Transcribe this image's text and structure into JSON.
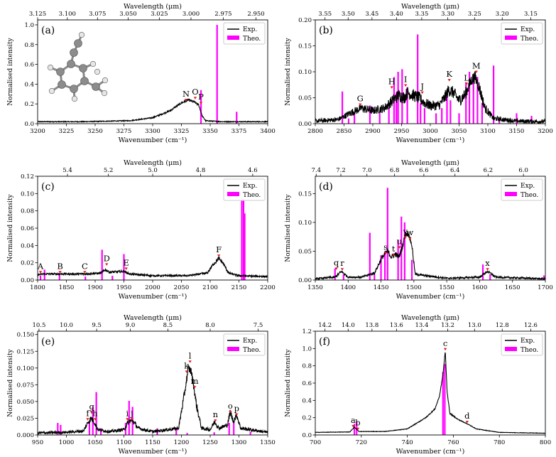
{
  "figure": {
    "legend_exp": "Exp.",
    "legend_theo": "Theo.",
    "colors": {
      "exp": "#000000",
      "theo": "#ff00ff",
      "marker": "#e02020"
    }
  },
  "chart_data": [
    {
      "panel": "(a)",
      "type": "line+bar",
      "xlabel": "Wavenumber (cm⁻¹)",
      "ylabel": "Normalised intensity",
      "top_label": "Wavelength (μm)",
      "xlim": [
        3200,
        3400
      ],
      "ylim": [
        0,
        1.05
      ],
      "xticks": [
        3200,
        3225,
        3250,
        3275,
        3300,
        3325,
        3350,
        3375,
        3400
      ],
      "yticks": [
        0.0,
        0.2,
        0.4,
        0.6,
        0.8,
        1.0
      ],
      "top_ticks": [
        3.125,
        3.1,
        3.075,
        3.05,
        3.025,
        3.0,
        2.975,
        2.95
      ],
      "top_tick_labels": [
        "3.125",
        "3.100",
        "3.075",
        "3.050",
        "3.025",
        "3.000",
        "2.975",
        "2.950"
      ],
      "exp": [
        [
          3200,
          0.02
        ],
        [
          3240,
          0.02
        ],
        [
          3280,
          0.03
        ],
        [
          3300,
          0.06
        ],
        [
          3315,
          0.13
        ],
        [
          3325,
          0.21
        ],
        [
          3331,
          0.24
        ],
        [
          3336,
          0.22
        ],
        [
          3340,
          0.19
        ],
        [
          3343,
          0.08
        ],
        [
          3346,
          0.03
        ],
        [
          3360,
          0.02
        ],
        [
          3400,
          0.02
        ]
      ],
      "exp_noise": 0.02,
      "theo": [
        [
          3342,
          0.34
        ],
        [
          3356,
          1.0
        ],
        [
          3373,
          0.12
        ]
      ],
      "peaks": [
        {
          "label": "N",
          "x": 3329,
          "y": 0.23
        },
        {
          "label": "O",
          "x": 3337,
          "y": 0.25
        },
        {
          "label": "P",
          "x": 3342,
          "y": 0.2
        }
      ],
      "has_molecule": true
    },
    {
      "panel": "(b)",
      "type": "line+bar",
      "xlabel": "Wavenumber (cm⁻¹)",
      "ylabel": "Normalised intensity",
      "top_label": "Wavelength (μm)",
      "xlim": [
        2800,
        3200
      ],
      "ylim": [
        0,
        0.2
      ],
      "xticks": [
        2800,
        2850,
        2900,
        2950,
        3000,
        3050,
        3100,
        3150,
        3200
      ],
      "yticks": [
        0.0,
        0.05,
        0.1,
        0.15,
        0.2
      ],
      "top_ticks": [
        3.55,
        3.5,
        3.45,
        3.4,
        3.35,
        3.3,
        3.25,
        3.2,
        3.15
      ],
      "top_tick_labels": [
        "3.55",
        "3.50",
        "3.45",
        "3.40",
        "3.35",
        "3.30",
        "3.25",
        "3.20",
        "3.15"
      ],
      "exp": [
        [
          2800,
          0.005
        ],
        [
          2840,
          0.008
        ],
        [
          2860,
          0.02
        ],
        [
          2880,
          0.03
        ],
        [
          2900,
          0.025
        ],
        [
          2920,
          0.03
        ],
        [
          2935,
          0.045
        ],
        [
          2945,
          0.055
        ],
        [
          2955,
          0.05
        ],
        [
          2960,
          0.06
        ],
        [
          2970,
          0.055
        ],
        [
          2980,
          0.05
        ],
        [
          2990,
          0.04
        ],
        [
          3000,
          0.035
        ],
        [
          3015,
          0.035
        ],
        [
          3025,
          0.05
        ],
        [
          3032,
          0.065
        ],
        [
          3040,
          0.06
        ],
        [
          3050,
          0.045
        ],
        [
          3060,
          0.055
        ],
        [
          3072,
          0.085
        ],
        [
          3078,
          0.09
        ],
        [
          3085,
          0.07
        ],
        [
          3095,
          0.03
        ],
        [
          3110,
          0.01
        ],
        [
          3150,
          0.005
        ],
        [
          3200,
          0.004
        ]
      ],
      "exp_noise": 0.018,
      "theo": [
        [
          2847,
          0.062
        ],
        [
          2858,
          0.01
        ],
        [
          2868,
          0.02
        ],
        [
          2895,
          0.035
        ],
        [
          2912,
          0.02
        ],
        [
          2928,
          0.03
        ],
        [
          2937,
          0.09
        ],
        [
          2941,
          0.06
        ],
        [
          2944,
          0.1
        ],
        [
          2951,
          0.105
        ],
        [
          2960,
          0.07
        ],
        [
          2978,
          0.172
        ],
        [
          2983,
          0.04
        ],
        [
          2990,
          0.03
        ],
        [
          3010,
          0.02
        ],
        [
          3020,
          0.03
        ],
        [
          3029,
          0.06
        ],
        [
          3035,
          0.045
        ],
        [
          3050,
          0.02
        ],
        [
          3062,
          0.08
        ],
        [
          3068,
          0.1
        ],
        [
          3075,
          0.095
        ],
        [
          3082,
          0.09
        ],
        [
          3090,
          0.04
        ],
        [
          3110,
          0.112
        ],
        [
          3120,
          0.01
        ],
        [
          3150,
          0.02
        ],
        [
          3176,
          0.015
        ]
      ],
      "peaks": [
        {
          "label": "G",
          "x": 2878,
          "y": 0.035
        },
        {
          "label": "H",
          "x": 2933,
          "y": 0.068
        },
        {
          "label": "I",
          "x": 2957,
          "y": 0.072
        },
        {
          "label": "J",
          "x": 2986,
          "y": 0.058
        },
        {
          "label": "K",
          "x": 3033,
          "y": 0.082
        },
        {
          "label": "L",
          "x": 3063,
          "y": 0.075
        },
        {
          "label": "M",
          "x": 3080,
          "y": 0.098
        }
      ]
    },
    {
      "panel": "(c)",
      "type": "line+bar",
      "xlabel": "Wavenumber (cm⁻¹)",
      "ylabel": "Normalised intensity",
      "top_label": "Wavelength (μm)",
      "xlim": [
        1800,
        2200
      ],
      "ylim": [
        0,
        0.12
      ],
      "xticks": [
        1800,
        1850,
        1900,
        1950,
        2000,
        2050,
        2100,
        2150,
        2200
      ],
      "yticks": [
        0.0,
        0.02,
        0.04,
        0.06,
        0.08,
        0.1,
        0.12
      ],
      "top_ticks": [
        5.4,
        5.2,
        5.0,
        4.8,
        4.6
      ],
      "top_tick_labels": [
        "5.4",
        "5.2",
        "5.0",
        "4.8",
        "4.6"
      ],
      "exp": [
        [
          1800,
          0.006
        ],
        [
          1810,
          0.007
        ],
        [
          1840,
          0.007
        ],
        [
          1880,
          0.007
        ],
        [
          1910,
          0.008
        ],
        [
          1918,
          0.012
        ],
        [
          1925,
          0.009
        ],
        [
          1950,
          0.01
        ],
        [
          1960,
          0.007
        ],
        [
          2000,
          0.005
        ],
        [
          2060,
          0.005
        ],
        [
          2095,
          0.008
        ],
        [
          2105,
          0.018
        ],
        [
          2115,
          0.025
        ],
        [
          2122,
          0.02
        ],
        [
          2132,
          0.008
        ],
        [
          2150,
          0.005
        ],
        [
          2200,
          0.004
        ]
      ],
      "exp_noise": 0.004,
      "theo": [
        [
          1805,
          0.005
        ],
        [
          1812,
          0.012
        ],
        [
          1838,
          0.008
        ],
        [
          1883,
          0.004
        ],
        [
          1912,
          0.035
        ],
        [
          1930,
          0.005
        ],
        [
          1950,
          0.03
        ],
        [
          2155,
          0.1
        ],
        [
          2158,
          0.11
        ],
        [
          2160,
          0.077
        ]
      ],
      "peaks": [
        {
          "label": "A",
          "x": 1805,
          "y": 0.008
        },
        {
          "label": "B",
          "x": 1839,
          "y": 0.008
        },
        {
          "label": "C",
          "x": 1882,
          "y": 0.008
        },
        {
          "label": "D",
          "x": 1920,
          "y": 0.017
        },
        {
          "label": "E",
          "x": 1954,
          "y": 0.012
        },
        {
          "label": "F",
          "x": 2115,
          "y": 0.027
        }
      ]
    },
    {
      "panel": "(d)",
      "type": "line+bar",
      "xlabel": "Wavenumber (cm⁻¹)",
      "ylabel": "Normalised intensity",
      "top_label": "Wavelength (μm)",
      "xlim": [
        1350,
        1700
      ],
      "ylim": [
        0,
        0.18
      ],
      "xticks": [
        1350,
        1400,
        1450,
        1500,
        1550,
        1600,
        1650,
        1700
      ],
      "yticks": [
        0.0,
        0.05,
        0.1,
        0.15
      ],
      "top_ticks": [
        7.4,
        7.2,
        7.0,
        6.8,
        6.6,
        6.4,
        6.2,
        6.0
      ],
      "top_tick_labels": [
        "7.4",
        "7.2",
        "7.0",
        "6.8",
        "6.6",
        "6.4",
        "6.2",
        "6.0"
      ],
      "exp": [
        [
          1350,
          0.002
        ],
        [
          1380,
          0.005
        ],
        [
          1390,
          0.015
        ],
        [
          1400,
          0.005
        ],
        [
          1420,
          0.005
        ],
        [
          1440,
          0.012
        ],
        [
          1452,
          0.04
        ],
        [
          1460,
          0.05
        ],
        [
          1466,
          0.04
        ],
        [
          1472,
          0.045
        ],
        [
          1477,
          0.04
        ],
        [
          1482,
          0.055
        ],
        [
          1487,
          0.08
        ],
        [
          1492,
          0.08
        ],
        [
          1497,
          0.06
        ],
        [
          1502,
          0.01
        ],
        [
          1550,
          0.003
        ],
        [
          1600,
          0.005
        ],
        [
          1612,
          0.015
        ],
        [
          1625,
          0.005
        ],
        [
          1700,
          0.002
        ]
      ],
      "exp_noise": 0.007,
      "theo": [
        [
          1380,
          0.02
        ],
        [
          1393,
          0.01
        ],
        [
          1433,
          0.082
        ],
        [
          1440,
          0.01
        ],
        [
          1450,
          0.043
        ],
        [
          1456,
          0.05
        ],
        [
          1460,
          0.16
        ],
        [
          1476,
          0.07
        ],
        [
          1481,
          0.11
        ],
        [
          1486,
          0.1
        ],
        [
          1497,
          0.035
        ],
        [
          1605,
          0.027
        ],
        [
          1616,
          0.01
        ],
        [
          1698,
          0.008
        ]
      ],
      "peaks": [
        {
          "label": "q",
          "x": 1382,
          "y": 0.018
        },
        {
          "label": "r",
          "x": 1391,
          "y": 0.017
        },
        {
          "label": "s",
          "x": 1457,
          "y": 0.045
        },
        {
          "label": "t",
          "x": 1469,
          "y": 0.042
        },
        {
          "label": "u",
          "x": 1478,
          "y": 0.055
        },
        {
          "label": "v",
          "x": 1487,
          "y": 0.072
        },
        {
          "label": "w",
          "x": 1494,
          "y": 0.07
        },
        {
          "label": "x",
          "x": 1612,
          "y": 0.017
        }
      ]
    },
    {
      "panel": "(e)",
      "type": "line+bar",
      "xlabel": "Wavenumber (cm⁻¹)",
      "ylabel": "Normalised intensity",
      "top_label": "Wavelength (μm)",
      "xlim": [
        950,
        1350
      ],
      "ylim": [
        0,
        0.155
      ],
      "xticks": [
        950,
        1000,
        1050,
        1100,
        1150,
        1200,
        1250,
        1300,
        1350
      ],
      "yticks": [
        0.0,
        0.025,
        0.05,
        0.075,
        0.1,
        0.125,
        0.15
      ],
      "top_ticks": [
        10.5,
        10.0,
        9.5,
        9.0,
        8.5,
        8.0,
        7.5
      ],
      "top_tick_labels": [
        "10.5",
        "10.0",
        "9.5",
        "9.0",
        "8.5",
        "8.0",
        "7.5"
      ],
      "exp": [
        [
          950,
          0.003
        ],
        [
          1000,
          0.004
        ],
        [
          1030,
          0.006
        ],
        [
          1037,
          0.018
        ],
        [
          1043,
          0.025
        ],
        [
          1048,
          0.02
        ],
        [
          1055,
          0.008
        ],
        [
          1075,
          0.005
        ],
        [
          1100,
          0.008
        ],
        [
          1108,
          0.02
        ],
        [
          1115,
          0.022
        ],
        [
          1125,
          0.01
        ],
        [
          1150,
          0.005
        ],
        [
          1195,
          0.01
        ],
        [
          1205,
          0.06
        ],
        [
          1212,
          0.1
        ],
        [
          1217,
          0.095
        ],
        [
          1222,
          0.07
        ],
        [
          1226,
          0.045
        ],
        [
          1235,
          0.01
        ],
        [
          1250,
          0.008
        ],
        [
          1258,
          0.02
        ],
        [
          1265,
          0.01
        ],
        [
          1280,
          0.015
        ],
        [
          1285,
          0.035
        ],
        [
          1290,
          0.02
        ],
        [
          1296,
          0.03
        ],
        [
          1303,
          0.01
        ],
        [
          1350,
          0.004
        ]
      ],
      "exp_noise": 0.009,
      "theo": [
        [
          985,
          0.018
        ],
        [
          990,
          0.015
        ],
        [
          1040,
          0.02
        ],
        [
          1046,
          0.042
        ],
        [
          1052,
          0.064
        ],
        [
          1060,
          0.01
        ],
        [
          1103,
          0.018
        ],
        [
          1109,
          0.051
        ],
        [
          1115,
          0.042
        ],
        [
          1158,
          0.01
        ],
        [
          1191,
          0.008
        ],
        [
          1210,
          0.003
        ],
        [
          1257,
          0.004
        ],
        [
          1283,
          0.018
        ],
        [
          1291,
          0.02
        ],
        [
          1320,
          0.005
        ]
      ],
      "peaks": [
        {
          "label": "f",
          "x": 1037,
          "y": 0.022
        },
        {
          "label": "g",
          "x": 1044,
          "y": 0.032
        },
        {
          "label": "h",
          "x": 1050,
          "y": 0.022
        },
        {
          "label": "i",
          "x": 1106,
          "y": 0.022
        },
        {
          "label": "j",
          "x": 1114,
          "y": 0.022
        },
        {
          "label": "k",
          "x": 1209,
          "y": 0.093
        },
        {
          "label": "l",
          "x": 1215,
          "y": 0.108
        },
        {
          "label": "m",
          "x": 1223,
          "y": 0.07
        },
        {
          "label": "n",
          "x": 1259,
          "y": 0.02
        },
        {
          "label": "o",
          "x": 1285,
          "y": 0.033
        },
        {
          "label": "p",
          "x": 1296,
          "y": 0.029
        }
      ]
    },
    {
      "panel": "(f)",
      "type": "line+bar",
      "xlabel": "Wavenumber (cm⁻¹)",
      "ylabel": "Normalised intensity",
      "top_label": "Wavelength (μm)",
      "xlim": [
        700,
        800
      ],
      "ylim": [
        0,
        1.2
      ],
      "xticks": [
        700,
        720,
        740,
        760,
        780,
        800
      ],
      "yticks": [
        0.0,
        0.2,
        0.4,
        0.6,
        0.8,
        1.0,
        1.2
      ],
      "top_ticks": [
        14.2,
        14.0,
        13.8,
        13.6,
        13.4,
        13.2,
        13.0,
        12.8,
        12.6
      ],
      "top_tick_labels": [
        "14.2",
        "14.0",
        "13.8",
        "13.6",
        "13.4",
        "13.2",
        "13.0",
        "12.8",
        "12.6"
      ],
      "exp": [
        [
          700,
          0.03
        ],
        [
          715,
          0.035
        ],
        [
          717,
          0.09
        ],
        [
          719,
          0.04
        ],
        [
          730,
          0.04
        ],
        [
          740,
          0.07
        ],
        [
          748,
          0.2
        ],
        [
          752,
          0.3
        ],
        [
          754,
          0.45
        ],
        [
          755.5,
          0.7
        ],
        [
          756.5,
          0.97
        ],
        [
          757.3,
          0.5
        ],
        [
          758.5,
          0.25
        ],
        [
          762,
          0.18
        ],
        [
          766,
          0.13
        ],
        [
          770,
          0.07
        ],
        [
          780,
          0.03
        ],
        [
          800,
          0.02
        ]
      ],
      "exp_noise": 0.01,
      "theo": [
        [
          717,
          0.13
        ],
        [
          718,
          0.16
        ],
        [
          755.5,
          0.73
        ],
        [
          756.3,
          0.82
        ]
      ],
      "peaks": [
        {
          "label": "a",
          "x": 716.5,
          "y": 0.09
        },
        {
          "label": "b",
          "x": 718.5,
          "y": 0.06
        },
        {
          "label": "c",
          "x": 756.5,
          "y": 0.98
        },
        {
          "label": "d",
          "x": 766,
          "y": 0.14
        }
      ]
    }
  ]
}
